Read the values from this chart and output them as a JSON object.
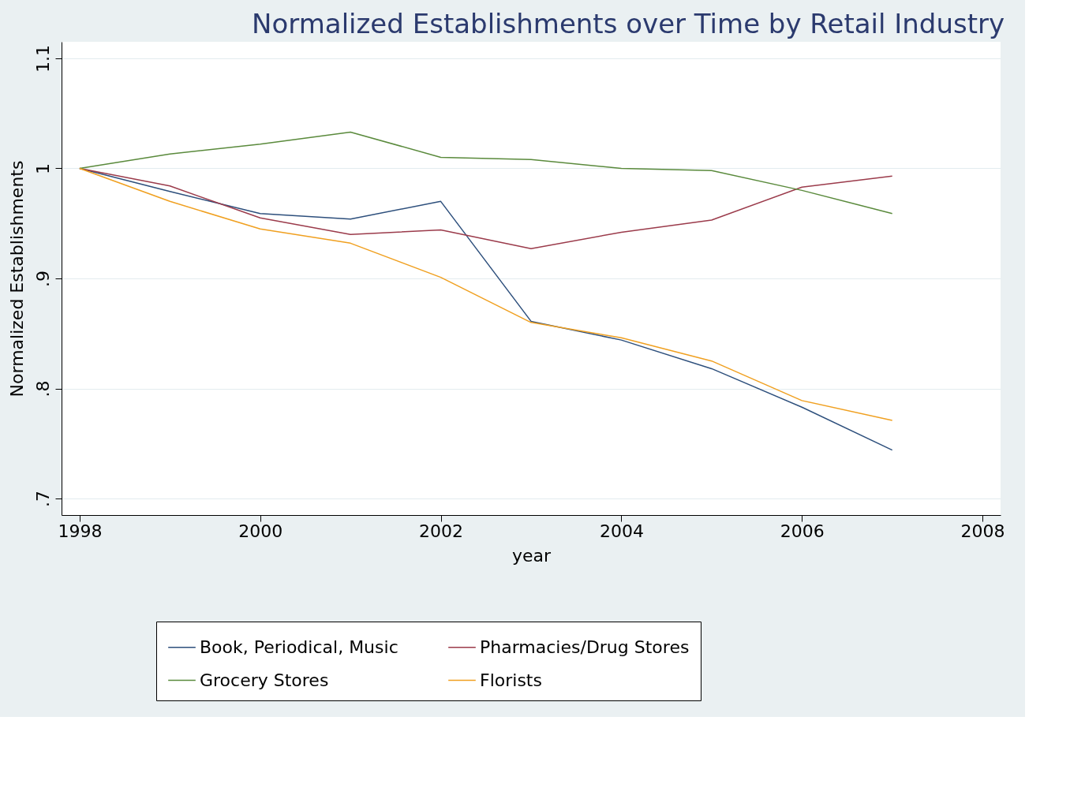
{
  "chart_data": {
    "type": "line",
    "title": "Normalized Establishments over Time by Retail Industry",
    "xlabel": "year",
    "ylabel": "Normalized Establishments",
    "x": [
      1998,
      1999,
      2000,
      2001,
      2002,
      2003,
      2004,
      2005,
      2006,
      2007
    ],
    "series": [
      {
        "name": "Book, Periodical, Music",
        "color": "#2d4f7c",
        "values": [
          1.0,
          0.979,
          0.959,
          0.954,
          0.97,
          0.861,
          0.844,
          0.818,
          0.783,
          0.744
        ]
      },
      {
        "name": "Pharmacies/Drug Stores",
        "color": "#9b3b4b",
        "values": [
          1.0,
          0.984,
          0.955,
          0.94,
          0.944,
          0.927,
          0.942,
          0.953,
          0.983,
          0.993
        ]
      },
      {
        "name": "Grocery Stores",
        "color": "#5a8a3c",
        "values": [
          1.0,
          1.013,
          1.022,
          1.033,
          1.01,
          1.008,
          1.0,
          0.998,
          0.98,
          0.959
        ]
      },
      {
        "name": "Florists",
        "color": "#f0a020",
        "values": [
          1.0,
          0.97,
          0.945,
          0.932,
          0.901,
          0.86,
          0.846,
          0.825,
          0.789,
          0.771
        ]
      }
    ],
    "xlim": [
      1997.8,
      2008.2
    ],
    "xticks": [
      1998,
      2000,
      2002,
      2004,
      2006,
      2008
    ],
    "ylim": [
      0.685,
      1.115
    ],
    "yticks": [
      {
        "value": 0.7,
        "label": ".7"
      },
      {
        "value": 0.8,
        "label": ".8"
      },
      {
        "value": 0.9,
        "label": ".9"
      },
      1,
      1.1
    ],
    "grid": "y",
    "legend": "bottom",
    "marker": "none",
    "line_style": "solid"
  }
}
